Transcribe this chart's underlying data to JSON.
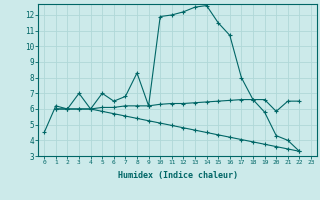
{
  "xlabel": "Humidex (Indice chaleur)",
  "bg_color": "#cceaea",
  "grid_color": "#b0d8d8",
  "line_color": "#006666",
  "xlim": [
    -0.5,
    23.5
  ],
  "ylim": [
    3,
    12.7
  ],
  "yticks": [
    3,
    4,
    5,
    6,
    7,
    8,
    9,
    10,
    11,
    12
  ],
  "xticks": [
    0,
    1,
    2,
    3,
    4,
    5,
    6,
    7,
    8,
    9,
    10,
    11,
    12,
    13,
    14,
    15,
    16,
    17,
    18,
    19,
    20,
    21,
    22,
    23
  ],
  "series1_x": [
    0,
    1,
    2,
    3,
    4,
    5,
    6,
    7,
    8,
    9,
    10,
    11,
    12,
    13,
    14,
    15,
    16,
    17,
    18,
    19,
    20,
    21,
    22
  ],
  "series1_y": [
    4.5,
    6.2,
    6.0,
    7.0,
    6.0,
    7.0,
    6.5,
    6.8,
    8.3,
    6.2,
    11.9,
    12.0,
    12.2,
    12.5,
    12.6,
    11.5,
    10.7,
    8.0,
    6.6,
    5.8,
    4.3,
    4.0,
    3.3
  ],
  "series2_x": [
    1,
    2,
    3,
    4,
    5,
    6,
    7,
    8,
    9,
    10,
    11,
    12,
    13,
    14,
    15,
    16,
    17,
    18,
    19,
    20,
    21,
    22
  ],
  "series2_y": [
    6.0,
    6.0,
    6.0,
    6.0,
    6.1,
    6.1,
    6.2,
    6.2,
    6.2,
    6.3,
    6.35,
    6.35,
    6.4,
    6.45,
    6.5,
    6.55,
    6.6,
    6.6,
    6.6,
    5.85,
    6.5,
    6.5
  ],
  "series3_x": [
    1,
    2,
    3,
    4,
    5,
    6,
    7,
    8,
    9,
    10,
    11,
    12,
    13,
    14,
    15,
    16,
    17,
    18,
    19,
    20,
    21,
    22
  ],
  "series3_y": [
    6.0,
    6.0,
    6.0,
    6.0,
    5.85,
    5.7,
    5.55,
    5.4,
    5.25,
    5.1,
    4.95,
    4.8,
    4.65,
    4.5,
    4.35,
    4.2,
    4.05,
    3.9,
    3.75,
    3.6,
    3.45,
    3.3
  ]
}
